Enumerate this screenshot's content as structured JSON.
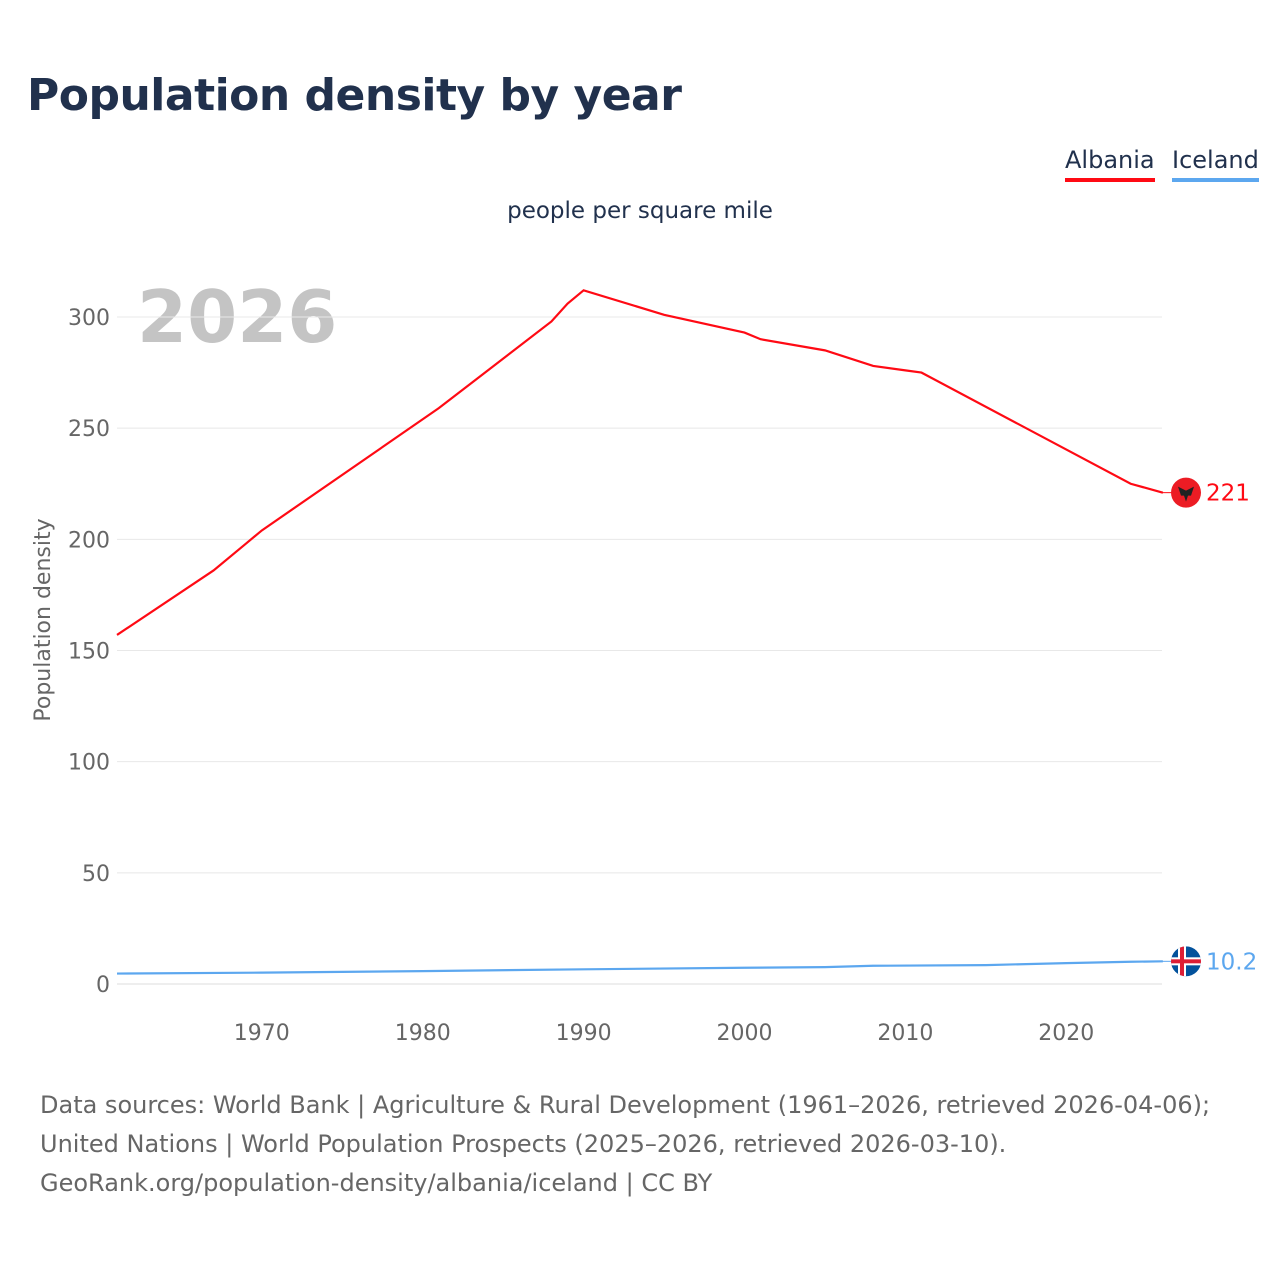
{
  "title": "Population density by year",
  "subtitle": "people per square mile",
  "footer": {
    "line1": "Data sources: World Bank | Agriculture & Rural Development (1961–2026, retrieved 2026-04-06); United Nations | World Population Prospects (2025–2026, retrieved 2026-03-10).",
    "line2": "GeoRank.org/population-density/albania/iceland | CC BY"
  },
  "chart_data": {
    "type": "line",
    "title": "Population density by year",
    "ylabel": "Population density",
    "xlabel": "",
    "year_label": "2026",
    "xlim": [
      1961,
      2026
    ],
    "ylim": [
      0,
      320
    ],
    "yticks": [
      0,
      50,
      100,
      150,
      200,
      250,
      300
    ],
    "xticks": [
      1970,
      1980,
      1990,
      2000,
      2010,
      2020
    ],
    "legend": "top-right",
    "series": [
      {
        "name": "Albania",
        "color": "#ff0a14",
        "end_label": "221",
        "flag": "albania-flag-icon",
        "points": [
          [
            1961,
            157
          ],
          [
            1967,
            186
          ],
          [
            1969,
            198
          ],
          [
            1970,
            204
          ],
          [
            1981,
            259
          ],
          [
            1988,
            298
          ],
          [
            1989,
            306
          ],
          [
            1990,
            312
          ],
          [
            1995,
            301
          ],
          [
            2000,
            293
          ],
          [
            2001,
            290
          ],
          [
            2005,
            285
          ],
          [
            2008,
            278
          ],
          [
            2010,
            276
          ],
          [
            2011,
            275
          ],
          [
            2024,
            225
          ],
          [
            2026,
            221
          ]
        ]
      },
      {
        "name": "Iceland",
        "color": "#5ca7ef",
        "end_label": "10.2",
        "flag": "iceland-flag-icon",
        "points": [
          [
            1961,
            4.7
          ],
          [
            1970,
            5.1
          ],
          [
            1980,
            5.8
          ],
          [
            1990,
            6.6
          ],
          [
            2000,
            7.3
          ],
          [
            2005,
            7.6
          ],
          [
            2008,
            8.2
          ],
          [
            2015,
            8.5
          ],
          [
            2020,
            9.4
          ],
          [
            2024,
            10.0
          ],
          [
            2026,
            10.2
          ]
        ]
      }
    ]
  }
}
